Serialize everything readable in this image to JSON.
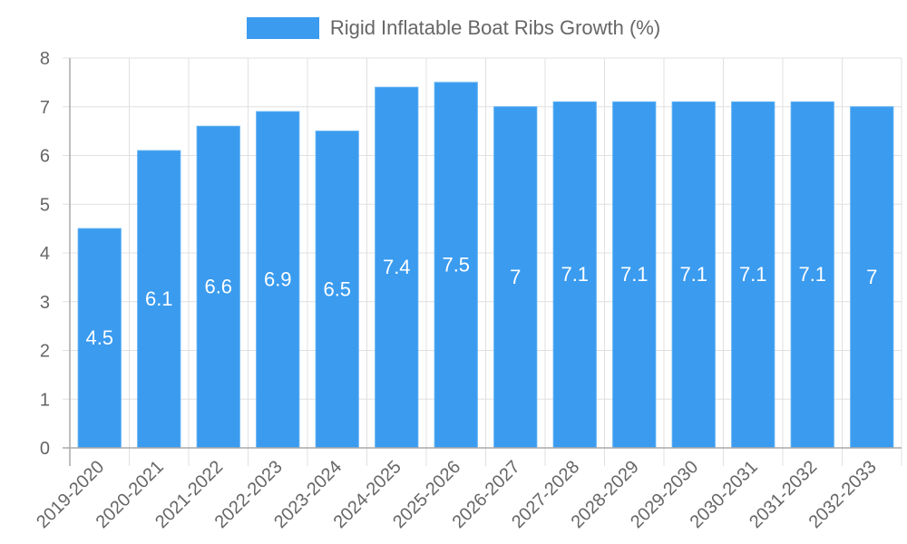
{
  "chart_data": {
    "type": "bar",
    "title": "",
    "legend": [
      {
        "label": "Rigid Inflatable Boat Ribs Growth (%)",
        "color": "#3a9bef"
      }
    ],
    "legend_position": "top",
    "xlabel": "",
    "ylabel": "",
    "ylim": [
      0,
      8
    ],
    "yticks": [
      0,
      1,
      2,
      3,
      4,
      5,
      6,
      7,
      8
    ],
    "grid": true,
    "categories": [
      "2019-2020",
      "2020-2021",
      "2021-2022",
      "2022-2023",
      "2023-2024",
      "2024-2025",
      "2025-2026",
      "2026-2027",
      "2027-2028",
      "2028-2029",
      "2029-2030",
      "2030-2031",
      "2031-2032",
      "2032-2033"
    ],
    "series": [
      {
        "name": "Rigid Inflatable Boat Ribs Growth (%)",
        "color": "#3a9bef",
        "values": [
          4.5,
          6.1,
          6.6,
          6.9,
          6.5,
          7.4,
          7.5,
          7,
          7.1,
          7.1,
          7.1,
          7.1,
          7.1,
          7
        ]
      }
    ],
    "data_labels": [
      "4.5",
      "6.1",
      "6.6",
      "6.9",
      "6.5",
      "7.4",
      "7.5",
      "7",
      "7.1",
      "7.1",
      "7.1",
      "7.1",
      "7.1",
      "7"
    ],
    "x_tick_rotation": -45
  },
  "legend": {
    "label": "Rigid Inflatable Boat Ribs Growth (%)"
  }
}
